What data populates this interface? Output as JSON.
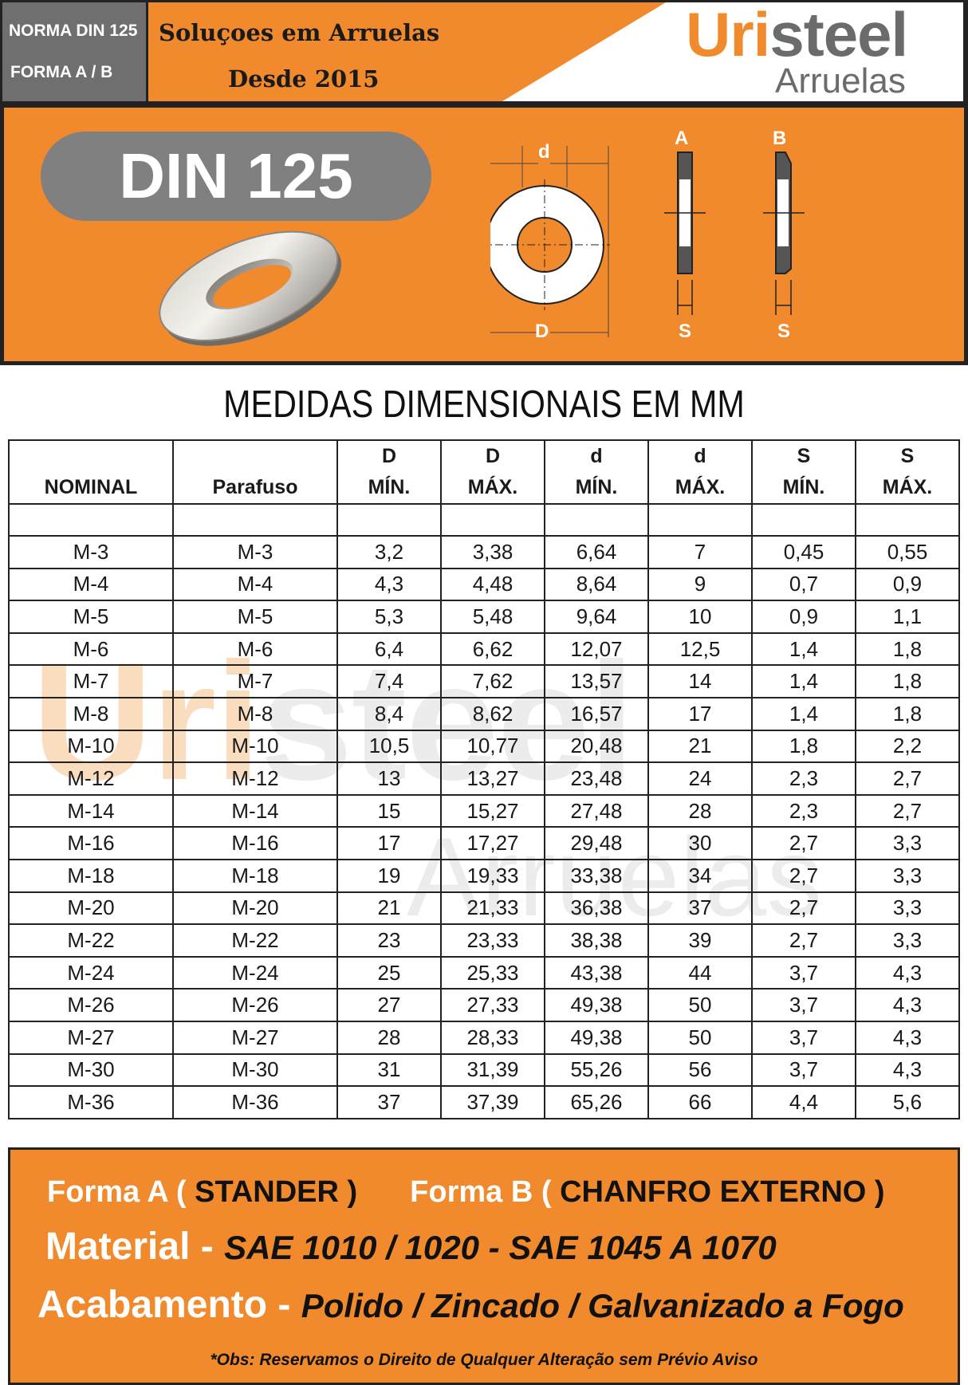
{
  "header": {
    "norma": "NORMA DIN 125",
    "forma": "FORMA  A / B",
    "slogan_line1": "Soluçoes em Arruelas",
    "slogan_line2": "Desde 2015",
    "logo_accent": "Uri",
    "logo_rest": "steel",
    "logo_sub": "Arruelas"
  },
  "banner": {
    "title": "DIN 125",
    "diagram_labels": {
      "d": "d",
      "D": "D",
      "A": "A",
      "B": "B",
      "S": "S"
    }
  },
  "table": {
    "title": "MEDIDAS DIMENSIONAIS EM MM",
    "headers": [
      {
        "top": "",
        "bottom": "NOMINAL"
      },
      {
        "top": "",
        "bottom": "Parafuso"
      },
      {
        "top": "D",
        "bottom": "MÍN."
      },
      {
        "top": "D",
        "bottom": "MÁX."
      },
      {
        "top": "d",
        "bottom": "MÍN."
      },
      {
        "top": "d",
        "bottom": "MÁX."
      },
      {
        "top": "S",
        "bottom": "MÍN."
      },
      {
        "top": "S",
        "bottom": "MÁX."
      }
    ],
    "rows": [
      [
        "M-3",
        "M-3",
        "3,2",
        "3,38",
        "6,64",
        "7",
        "0,45",
        "0,55"
      ],
      [
        "M-4",
        "M-4",
        "4,3",
        "4,48",
        "8,64",
        "9",
        "0,7",
        "0,9"
      ],
      [
        "M-5",
        "M-5",
        "5,3",
        "5,48",
        "9,64",
        "10",
        "0,9",
        "1,1"
      ],
      [
        "M-6",
        "M-6",
        "6,4",
        "6,62",
        "12,07",
        "12,5",
        "1,4",
        "1,8"
      ],
      [
        "M-7",
        "M-7",
        "7,4",
        "7,62",
        "13,57",
        "14",
        "1,4",
        "1,8"
      ],
      [
        "M-8",
        "M-8",
        "8,4",
        "8,62",
        "16,57",
        "17",
        "1,4",
        "1,8"
      ],
      [
        "M-10",
        "M-10",
        "10,5",
        "10,77",
        "20,48",
        "21",
        "1,8",
        "2,2"
      ],
      [
        "M-12",
        "M-12",
        "13",
        "13,27",
        "23,48",
        "24",
        "2,3",
        "2,7"
      ],
      [
        "M-14",
        "M-14",
        "15",
        "15,27",
        "27,48",
        "28",
        "2,3",
        "2,7"
      ],
      [
        "M-16",
        "M-16",
        "17",
        "17,27",
        "29,48",
        "30",
        "2,7",
        "3,3"
      ],
      [
        "M-18",
        "M-18",
        "19",
        "19,33",
        "33,38",
        "34",
        "2,7",
        "3,3"
      ],
      [
        "M-20",
        "M-20",
        "21",
        "21,33",
        "36,38",
        "37",
        "2,7",
        "3,3"
      ],
      [
        "M-22",
        "M-22",
        "23",
        "23,33",
        "38,38",
        "39",
        "2,7",
        "3,3"
      ],
      [
        "M-24",
        "M-24",
        "25",
        "25,33",
        "43,38",
        "44",
        "3,7",
        "4,3"
      ],
      [
        "M-26",
        "M-26",
        "27",
        "27,33",
        "49,38",
        "50",
        "3,7",
        "4,3"
      ],
      [
        "M-27",
        "M-27",
        "28",
        "28,33",
        "49,38",
        "50",
        "3,7",
        "4,3"
      ],
      [
        "M-30",
        "M-30",
        "31",
        "31,39",
        "55,26",
        "56",
        "3,7",
        "4,3"
      ],
      [
        "M-36",
        "M-36",
        "37",
        "37,39",
        "65,26",
        "66",
        "4,4",
        "5,6"
      ]
    ]
  },
  "watermark": {
    "main_accent": "Uri",
    "main_rest": "steel",
    "sub": "Arruelas"
  },
  "footer": {
    "forma_a_label": "Forma A (",
    "forma_a_value": "STANDER )",
    "forma_b_label": "Forma B (",
    "forma_b_value": "CHANFRO EXTERNO )",
    "material_label": "Material -",
    "material_value": "SAE 1010 / 1020 - SAE 1045 A 1070",
    "acabamento_label": "Acabamento -",
    "acabamento_value": "Polido / Zincado / Galvanizado a Fogo",
    "obs": "*Obs: Reservamos o Direito de Qualquer Alteração sem Prévio Aviso"
  },
  "colors": {
    "orange": "#f08a2c",
    "gray": "#6f6f6f",
    "dark": "#222222"
  }
}
